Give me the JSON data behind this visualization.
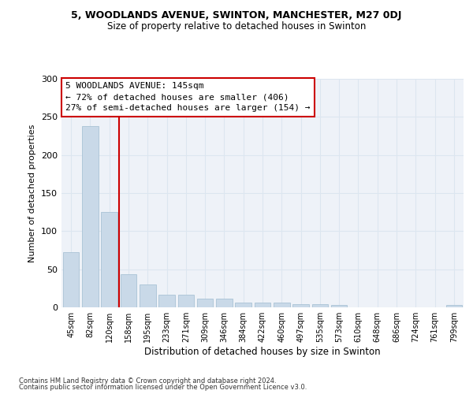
{
  "title1": "5, WOODLANDS AVENUE, SWINTON, MANCHESTER, M27 0DJ",
  "title2": "Size of property relative to detached houses in Swinton",
  "xlabel": "Distribution of detached houses by size in Swinton",
  "ylabel": "Number of detached properties",
  "categories": [
    "45sqm",
    "82sqm",
    "120sqm",
    "158sqm",
    "195sqm",
    "233sqm",
    "271sqm",
    "309sqm",
    "346sqm",
    "384sqm",
    "422sqm",
    "460sqm",
    "497sqm",
    "535sqm",
    "573sqm",
    "610sqm",
    "648sqm",
    "686sqm",
    "724sqm",
    "761sqm",
    "799sqm"
  ],
  "values": [
    72,
    238,
    125,
    43,
    30,
    17,
    17,
    11,
    11,
    6,
    6,
    6,
    4,
    4,
    3,
    0,
    0,
    0,
    0,
    0,
    3
  ],
  "bar_color": "#c9d9e8",
  "bar_edge_color": "#a0bcd0",
  "grid_color": "#dce6f0",
  "bg_color": "#eef2f8",
  "vline_x": 2.5,
  "vline_color": "#cc0000",
  "annotation_text": "5 WOODLANDS AVENUE: 145sqm\n← 72% of detached houses are smaller (406)\n27% of semi-detached houses are larger (154) →",
  "annotation_box_color": "#ffffff",
  "annotation_box_edge": "#cc0000",
  "ylim": [
    0,
    300
  ],
  "yticks": [
    0,
    50,
    100,
    150,
    200,
    250,
    300
  ],
  "footer1": "Contains HM Land Registry data © Crown copyright and database right 2024.",
  "footer2": "Contains public sector information licensed under the Open Government Licence v3.0."
}
